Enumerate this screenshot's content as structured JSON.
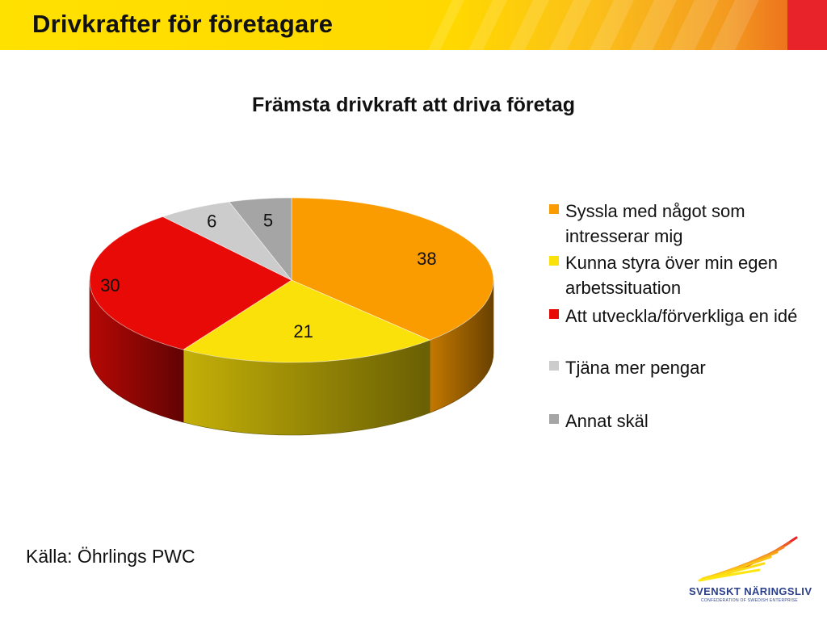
{
  "header": {
    "title": "Drivkrafter för företagare"
  },
  "chart_data": {
    "type": "pie",
    "title": "Främsta drivkraft att driva företag",
    "slices": [
      {
        "label": "Syssla med något som intresserar mig",
        "value": 38,
        "color": "#fa9b00"
      },
      {
        "label": "Kunna styra över min egen arbetssituation",
        "value": 21,
        "color": "#fbe10a"
      },
      {
        "label": "Att utveckla/förverkliga en idé",
        "value": 30,
        "color": "#e80a06"
      },
      {
        "label": "Tjäna mer pengar",
        "value": 6,
        "color": "#cccccc"
      },
      {
        "label": "Annat skäl",
        "value": 5,
        "color": "#a5a5a5"
      }
    ],
    "legend_position": "right",
    "style": "3d"
  },
  "legend": {
    "items": [
      {
        "label": "Syssla med något som intresserar mig",
        "color": "#fa9b00"
      },
      {
        "label": "Kunna styra över min egen arbetssituation",
        "color": "#fbe10a"
      },
      {
        "label": "Att utveckla/förverkliga en idé",
        "color": "#e80a06"
      },
      {
        "label": "Tjäna mer pengar",
        "color": "#cccccc"
      },
      {
        "label": "Annat skäl",
        "color": "#a5a5a5"
      }
    ]
  },
  "footer": {
    "source": "Källa: Öhrlings PWC"
  },
  "logo": {
    "name": "SVENSKT NÄRINGSLIV",
    "tagline": "CONFEDERATION OF SWEDISH ENTERPRISE"
  }
}
